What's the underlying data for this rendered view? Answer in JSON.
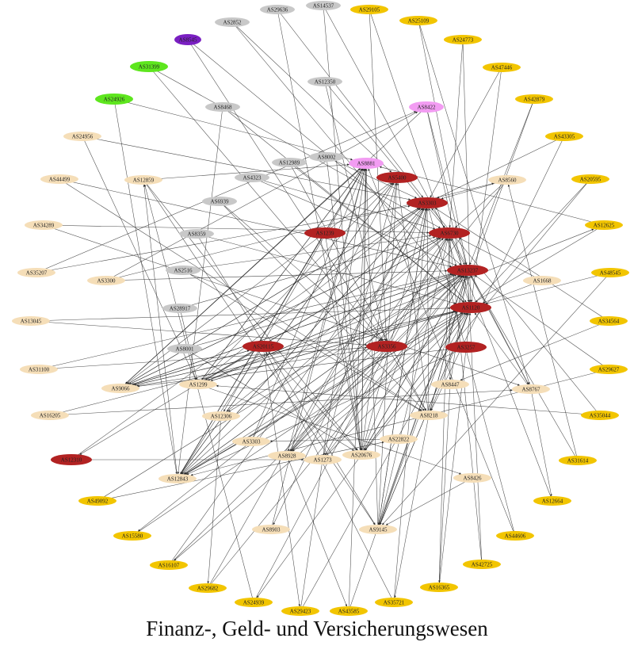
{
  "caption": "Finanz-, Geld- und Versicherungswesen",
  "colors": {
    "gray": "#c8c8c8",
    "yellow": "#f2c500",
    "beige": "#f5deb8",
    "red": "#b22222",
    "green": "#5ee61e",
    "purple": "#7a1fc2",
    "pink": "#f29cf2",
    "edge": "#2a2a2a"
  },
  "nodes": [
    {
      "id": "AS2852",
      "group": "gray"
    },
    {
      "id": "AS29636",
      "group": "gray"
    },
    {
      "id": "AS14537",
      "group": "gray"
    },
    {
      "id": "AS29105",
      "group": "yellow"
    },
    {
      "id": "AS25109",
      "group": "yellow"
    },
    {
      "id": "AS8545",
      "group": "purple"
    },
    {
      "id": "AS24773",
      "group": "yellow"
    },
    {
      "id": "AS31399",
      "group": "green"
    },
    {
      "id": "AS47446",
      "group": "yellow"
    },
    {
      "id": "AS12350",
      "group": "gray"
    },
    {
      "id": "AS24926",
      "group": "green"
    },
    {
      "id": "AS8468",
      "group": "gray"
    },
    {
      "id": "AS8422",
      "group": "pink"
    },
    {
      "id": "AS42879",
      "group": "yellow"
    },
    {
      "id": "AS24956",
      "group": "beige"
    },
    {
      "id": "AS43305",
      "group": "yellow"
    },
    {
      "id": "AS8002",
      "group": "gray"
    },
    {
      "id": "AS8881",
      "group": "pink"
    },
    {
      "id": "AS12989",
      "group": "gray"
    },
    {
      "id": "AS5400",
      "group": "red"
    },
    {
      "id": "AS44499",
      "group": "beige"
    },
    {
      "id": "AS12859",
      "group": "beige"
    },
    {
      "id": "AS4323",
      "group": "gray"
    },
    {
      "id": "AS8560",
      "group": "beige"
    },
    {
      "id": "AS20595",
      "group": "yellow"
    },
    {
      "id": "AS6939",
      "group": "gray"
    },
    {
      "id": "AS3303",
      "group": "red"
    },
    {
      "id": "AS34289",
      "group": "beige"
    },
    {
      "id": "AS1239",
      "group": "red"
    },
    {
      "id": "AS12625",
      "group": "yellow"
    },
    {
      "id": "AS8359",
      "group": "gray"
    },
    {
      "id": "AS6730",
      "group": "red"
    },
    {
      "id": "AS35207",
      "group": "beige"
    },
    {
      "id": "AS2516",
      "group": "gray"
    },
    {
      "id": "AS3300",
      "group": "beige"
    },
    {
      "id": "AS13237",
      "group": "red"
    },
    {
      "id": "AS48545",
      "group": "yellow"
    },
    {
      "id": "AS1668",
      "group": "beige"
    },
    {
      "id": "AS28917",
      "group": "gray"
    },
    {
      "id": "AS13045",
      "group": "beige"
    },
    {
      "id": "AS1120",
      "group": "red"
    },
    {
      "id": "AS34564",
      "group": "yellow"
    },
    {
      "id": "AS8001",
      "group": "gray"
    },
    {
      "id": "AS20115",
      "group": "red"
    },
    {
      "id": "AS3356",
      "group": "red"
    },
    {
      "id": "AS3257",
      "group": "red"
    },
    {
      "id": "AS31100",
      "group": "beige"
    },
    {
      "id": "AS29627",
      "group": "yellow"
    },
    {
      "id": "AS1299",
      "group": "beige"
    },
    {
      "id": "AS8447",
      "group": "beige"
    },
    {
      "id": "AS9066",
      "group": "beige"
    },
    {
      "id": "AS8767",
      "group": "beige"
    },
    {
      "id": "AS16205",
      "group": "beige"
    },
    {
      "id": "AS12306",
      "group": "beige"
    },
    {
      "id": "AS8218",
      "group": "beige"
    },
    {
      "id": "AS35044",
      "group": "yellow"
    },
    {
      "id": "AS3303b",
      "label": "AS3303",
      "group": "beige"
    },
    {
      "id": "AS22822",
      "group": "beige"
    },
    {
      "id": "AS8928",
      "group": "beige"
    },
    {
      "id": "AS20676",
      "group": "beige"
    },
    {
      "id": "AS12310",
      "group": "red"
    },
    {
      "id": "AS1273",
      "group": "beige"
    },
    {
      "id": "AS31614",
      "group": "yellow"
    },
    {
      "id": "AS12843",
      "group": "beige"
    },
    {
      "id": "AS8426",
      "group": "beige"
    },
    {
      "id": "AS49092",
      "group": "yellow"
    },
    {
      "id": "AS12664",
      "group": "yellow"
    },
    {
      "id": "AS8903",
      "group": "beige"
    },
    {
      "id": "AS9145",
      "group": "beige"
    },
    {
      "id": "AS15580",
      "group": "yellow"
    },
    {
      "id": "AS44606",
      "group": "yellow"
    },
    {
      "id": "AS16107",
      "group": "yellow"
    },
    {
      "id": "AS42725",
      "group": "yellow"
    },
    {
      "id": "AS29682",
      "group": "yellow"
    },
    {
      "id": "AS16365",
      "group": "yellow"
    },
    {
      "id": "AS24939",
      "group": "yellow"
    },
    {
      "id": "AS29423",
      "group": "yellow"
    },
    {
      "id": "AS43585",
      "group": "yellow"
    },
    {
      "id": "AS35721",
      "group": "yellow"
    }
  ],
  "edges": [
    [
      "AS2852",
      "AS5400"
    ],
    [
      "AS29636",
      "AS20676"
    ],
    [
      "AS14537",
      "AS20676"
    ],
    [
      "AS29105",
      "AS3356"
    ],
    [
      "AS25109",
      "AS8767"
    ],
    [
      "AS8545",
      "AS3356"
    ],
    [
      "AS24773",
      "AS1120"
    ],
    [
      "AS31399",
      "AS3356"
    ],
    [
      "AS47446",
      "AS1120"
    ],
    [
      "AS12350",
      "AS3356"
    ],
    [
      "AS24926",
      "AS12843"
    ],
    [
      "AS8468",
      "AS12843"
    ],
    [
      "AS8422",
      "AS9066"
    ],
    [
      "AS42879",
      "AS9145"
    ],
    [
      "AS24956",
      "AS1299"
    ],
    [
      "AS43305",
      "AS8218"
    ],
    [
      "AS8002",
      "AS20676"
    ],
    [
      "AS8881",
      "AS12843"
    ],
    [
      "AS8881",
      "AS9066"
    ],
    [
      "AS8881",
      "AS1299"
    ],
    [
      "AS8881",
      "AS20676"
    ],
    [
      "AS8881",
      "AS12306"
    ],
    [
      "AS8881",
      "AS8928"
    ],
    [
      "AS12989",
      "AS8218"
    ],
    [
      "AS5400",
      "AS9066"
    ],
    [
      "AS5400",
      "AS12843"
    ],
    [
      "AS5400",
      "AS1273"
    ],
    [
      "AS5400",
      "AS9145"
    ],
    [
      "AS44499",
      "AS8218"
    ],
    [
      "AS12859",
      "AS9145"
    ],
    [
      "AS12859",
      "AS20676"
    ],
    [
      "AS4323",
      "AS6730"
    ],
    [
      "AS8560",
      "AS8928"
    ],
    [
      "AS20595",
      "AS20676"
    ],
    [
      "AS6939",
      "AS8218"
    ],
    [
      "AS3303",
      "AS12843"
    ],
    [
      "AS3303",
      "AS9066"
    ],
    [
      "AS3303",
      "AS9145"
    ],
    [
      "AS3303",
      "AS8903"
    ],
    [
      "AS34289",
      "AS8767"
    ],
    [
      "AS1239",
      "AS12843"
    ],
    [
      "AS1239",
      "AS20676"
    ],
    [
      "AS12625",
      "AS12843"
    ],
    [
      "AS8359",
      "AS9145"
    ],
    [
      "AS6730",
      "AS12310"
    ],
    [
      "AS6730",
      "AS9066"
    ],
    [
      "AS6730",
      "AS8928"
    ],
    [
      "AS6730",
      "AS12306"
    ],
    [
      "AS6730",
      "AS1273"
    ],
    [
      "AS6730",
      "AS8447"
    ],
    [
      "AS6730",
      "AS8767"
    ],
    [
      "AS35207",
      "AS8422"
    ],
    [
      "AS2516",
      "AS8218"
    ],
    [
      "AS3300",
      "AS8560"
    ],
    [
      "AS13237",
      "AS12843"
    ],
    [
      "AS13237",
      "AS9066"
    ],
    [
      "AS13237",
      "AS1299"
    ],
    [
      "AS13237",
      "AS20676"
    ],
    [
      "AS13237",
      "AS12306"
    ],
    [
      "AS13237",
      "AS8218"
    ],
    [
      "AS13237",
      "AS15580"
    ],
    [
      "AS48545",
      "AS9145"
    ],
    [
      "AS1668",
      "AS6730"
    ],
    [
      "AS28917",
      "AS1299"
    ],
    [
      "AS13045",
      "AS3356"
    ],
    [
      "AS1120",
      "AS12843"
    ],
    [
      "AS1120",
      "AS9066"
    ],
    [
      "AS1120",
      "AS1299"
    ],
    [
      "AS1120",
      "AS8928"
    ],
    [
      "AS1120",
      "AS9145"
    ],
    [
      "AS1120",
      "AS20676"
    ],
    [
      "AS1120",
      "AS16107"
    ],
    [
      "AS34564",
      "AS8447"
    ],
    [
      "AS8001",
      "AS20676"
    ],
    [
      "AS20115",
      "AS12843"
    ],
    [
      "AS20115",
      "AS9066"
    ],
    [
      "AS20115",
      "AS1299"
    ],
    [
      "AS20115",
      "AS20676"
    ],
    [
      "AS20115",
      "AS29423"
    ],
    [
      "AS3356",
      "AS12843"
    ],
    [
      "AS3356",
      "AS9066"
    ],
    [
      "AS3356",
      "AS8218"
    ],
    [
      "AS3356",
      "AS8928"
    ],
    [
      "AS3257",
      "AS12843"
    ],
    [
      "AS3257",
      "AS9066"
    ],
    [
      "AS31100",
      "AS3356"
    ],
    [
      "AS29627",
      "AS12843"
    ],
    [
      "AS1299",
      "AS8426"
    ],
    [
      "AS1299",
      "AS12625"
    ],
    [
      "AS8447",
      "AS16365"
    ],
    [
      "AS9066",
      "AS20115"
    ],
    [
      "AS8767",
      "AS12664"
    ],
    [
      "AS16205",
      "AS8767"
    ],
    [
      "AS12306",
      "AS29682"
    ],
    [
      "AS8218",
      "AS35721"
    ],
    [
      "AS35044",
      "AS1299"
    ],
    [
      "AS22822",
      "AS3303b"
    ],
    [
      "AS8928",
      "AS43585"
    ],
    [
      "AS20676",
      "AS24939"
    ],
    [
      "AS12310",
      "AS1273"
    ],
    [
      "AS31614",
      "AS8560"
    ],
    [
      "AS12843",
      "AS12859"
    ],
    [
      "AS8426",
      "AS9145"
    ],
    [
      "AS49092",
      "AS22822"
    ],
    [
      "AS8903",
      "AS8881"
    ],
    [
      "AS9145",
      "AS8881"
    ],
    [
      "AS9145",
      "AS3303"
    ],
    [
      "AS9145",
      "AS6730"
    ],
    [
      "AS9145",
      "AS13237"
    ],
    [
      "AS9145",
      "AS1120"
    ],
    [
      "AS44606",
      "AS8881"
    ],
    [
      "AS16107",
      "AS13237"
    ],
    [
      "AS42725",
      "AS6730"
    ],
    [
      "AS29682",
      "AS3303"
    ],
    [
      "AS16365",
      "AS6730"
    ],
    [
      "AS24939",
      "AS12859"
    ],
    [
      "AS29423",
      "AS8881"
    ],
    [
      "AS43585",
      "AS8881"
    ],
    [
      "AS35721",
      "AS20115"
    ],
    [
      "AS12859",
      "AS8881"
    ],
    [
      "AS12843",
      "AS8881"
    ],
    [
      "AS12843",
      "AS5400"
    ],
    [
      "AS12843",
      "AS3303"
    ],
    [
      "AS12843",
      "AS6730"
    ],
    [
      "AS12843",
      "AS13237"
    ],
    [
      "AS12843",
      "AS1120"
    ],
    [
      "AS9066",
      "AS8881"
    ],
    [
      "AS9066",
      "AS3303"
    ],
    [
      "AS9066",
      "AS6730"
    ],
    [
      "AS9066",
      "AS13237"
    ],
    [
      "AS9066",
      "AS1120"
    ],
    [
      "AS1299",
      "AS8881"
    ],
    [
      "AS1299",
      "AS5400"
    ],
    [
      "AS1299",
      "AS3303"
    ],
    [
      "AS1299",
      "AS6730"
    ],
    [
      "AS1299",
      "AS13237"
    ],
    [
      "AS1299",
      "AS1120"
    ],
    [
      "AS20676",
      "AS8881"
    ],
    [
      "AS20676",
      "AS5400"
    ],
    [
      "AS20676",
      "AS3303"
    ],
    [
      "AS20676",
      "AS6730"
    ],
    [
      "AS20676",
      "AS13237"
    ],
    [
      "AS20676",
      "AS1120"
    ],
    [
      "AS8218",
      "AS5400"
    ],
    [
      "AS8218",
      "AS3303"
    ],
    [
      "AS8218",
      "AS13237"
    ],
    [
      "AS8218",
      "AS1120"
    ],
    [
      "AS8928",
      "AS3303"
    ],
    [
      "AS8928",
      "AS13237"
    ],
    [
      "AS1273",
      "AS1120"
    ],
    [
      "AS1273",
      "AS13237"
    ],
    [
      "AS3303b",
      "AS5400"
    ],
    [
      "AS3303b",
      "AS8881"
    ],
    [
      "AS8447",
      "AS13237"
    ],
    [
      "AS8767",
      "AS1120"
    ],
    [
      "AS8767",
      "AS13237"
    ],
    [
      "AS8560",
      "AS3303"
    ],
    [
      "AS8560",
      "AS6730"
    ],
    [
      "AS3300",
      "AS13237"
    ],
    [
      "AS2516",
      "AS6730"
    ],
    [
      "AS3300",
      "AS8422"
    ],
    [
      "AS12989",
      "AS1120"
    ],
    [
      "AS4323",
      "AS13237"
    ],
    [
      "AS8002",
      "AS3303"
    ],
    [
      "AS12350",
      "AS6730"
    ],
    [
      "AS8468",
      "AS1120"
    ],
    [
      "AS8545",
      "AS13237"
    ],
    [
      "AS24926",
      "AS8881"
    ],
    [
      "AS31399",
      "AS6730"
    ],
    [
      "AS8422",
      "AS1120"
    ],
    [
      "AS8422",
      "AS13237"
    ],
    [
      "AS8359",
      "AS1120"
    ],
    [
      "AS6939",
      "AS3356"
    ],
    [
      "AS28917",
      "AS6730"
    ],
    [
      "AS8001",
      "AS13237"
    ],
    [
      "AS1668",
      "AS1120"
    ],
    [
      "AS12625",
      "AS8881"
    ],
    [
      "AS48545",
      "AS1120"
    ],
    [
      "AS34564",
      "AS3303"
    ],
    [
      "AS29627",
      "AS13237"
    ],
    [
      "AS35044",
      "AS3303"
    ],
    [
      "AS31614",
      "AS13237"
    ],
    [
      "AS12664",
      "AS6730"
    ],
    [
      "AS44606",
      "AS3303"
    ],
    [
      "AS42725",
      "AS13237"
    ],
    [
      "AS16365",
      "AS1120"
    ],
    [
      "AS35721",
      "AS3303"
    ],
    [
      "AS43585",
      "AS13237"
    ],
    [
      "AS29423",
      "AS1120"
    ],
    [
      "AS24939",
      "AS6730"
    ],
    [
      "AS29682",
      "AS13237"
    ],
    [
      "AS16107",
      "AS3303"
    ],
    [
      "AS15580",
      "AS1120"
    ],
    [
      "AS49092",
      "AS13237"
    ],
    [
      "AS12310",
      "AS3303"
    ],
    [
      "AS16205",
      "AS1120"
    ],
    [
      "AS31100",
      "AS13237"
    ],
    [
      "AS13045",
      "AS1120"
    ],
    [
      "AS35207",
      "AS3303"
    ],
    [
      "AS34289",
      "AS6730"
    ],
    [
      "AS44499",
      "AS13237"
    ],
    [
      "AS24956",
      "AS3303"
    ],
    [
      "AS20595",
      "AS1120"
    ],
    [
      "AS43305",
      "AS3303"
    ],
    [
      "AS42879",
      "AS13237"
    ],
    [
      "AS47446",
      "AS3303"
    ],
    [
      "AS24773",
      "AS6730"
    ],
    [
      "AS25109",
      "AS13237"
    ],
    [
      "AS29105",
      "AS1120"
    ],
    [
      "AS14537",
      "AS13237"
    ],
    [
      "AS29636",
      "AS3303"
    ],
    [
      "AS2852",
      "AS1120"
    ]
  ]
}
